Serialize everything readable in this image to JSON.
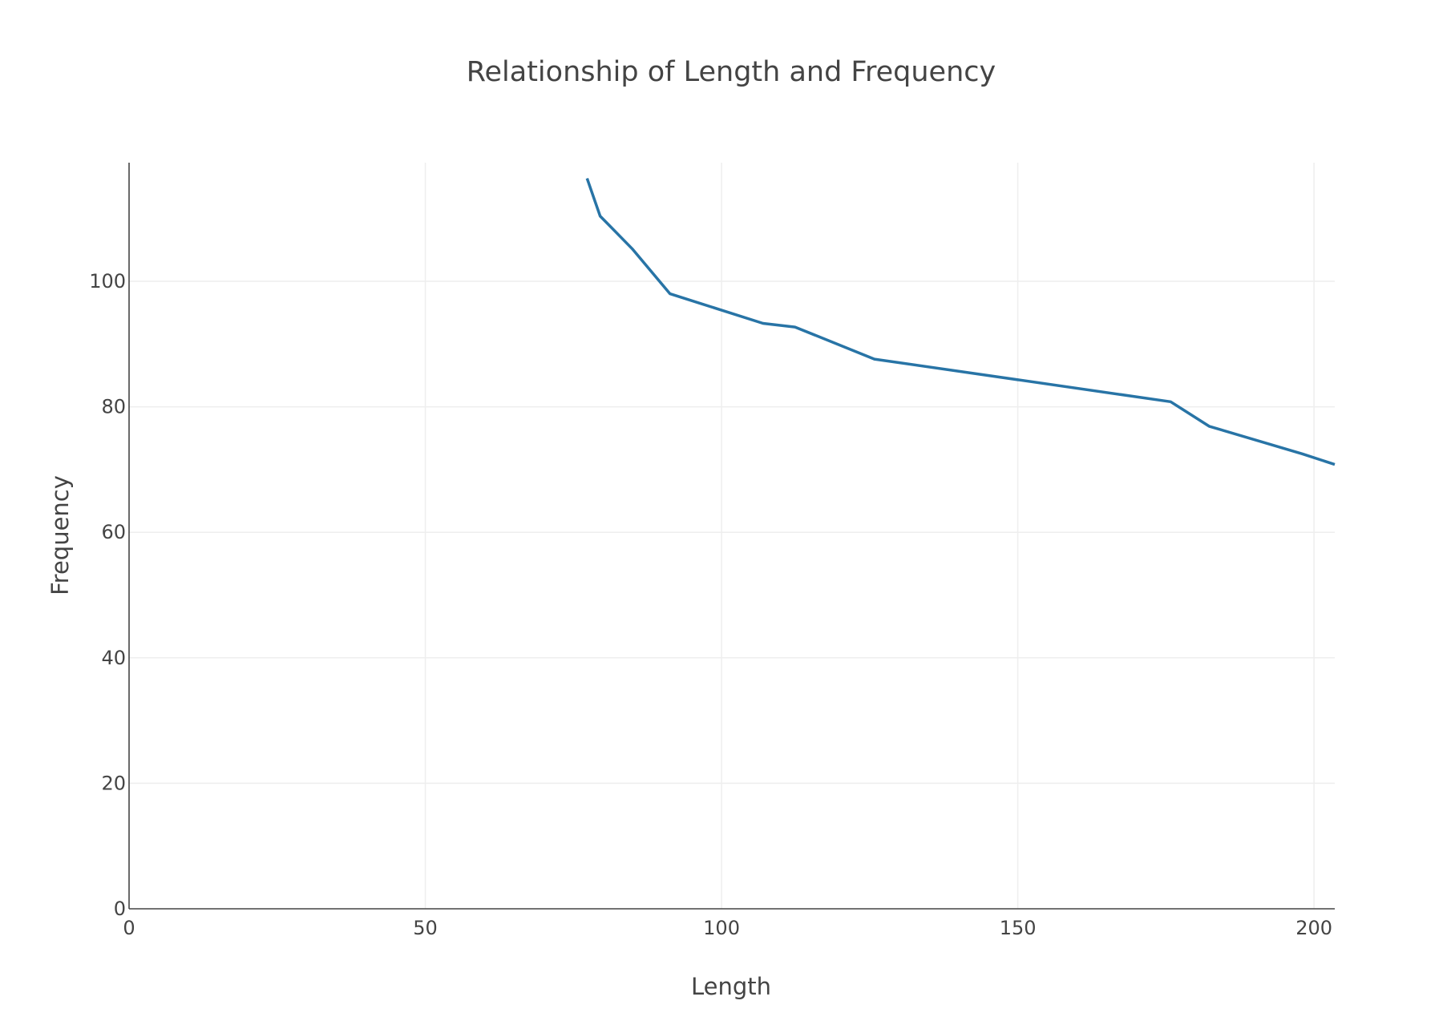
{
  "chart_data": {
    "type": "line",
    "title": "Relationship of Length and Frequency",
    "xlabel": "Length",
    "ylabel": "Frequency",
    "xlim": [
      0,
      203.5
    ],
    "ylim": [
      0,
      118.9
    ],
    "x_ticks": [
      0,
      50,
      100,
      150,
      200
    ],
    "y_ticks": [
      0,
      20,
      40,
      60,
      80,
      100
    ],
    "grid": true,
    "legend": "none",
    "colors": {
      "line": "#2874a6",
      "grid": "#eeeeee",
      "axis": "#444444",
      "text": "#444444"
    },
    "series": [
      {
        "x": [
          77.3,
          79.5,
          84.9,
          91.3,
          107.0,
          112.4,
          125.8,
          175.8,
          182.3,
          198.0,
          203.5
        ],
        "y": [
          116.4,
          110.4,
          105.2,
          98.0,
          93.3,
          92.7,
          87.6,
          80.8,
          76.9,
          72.5,
          70.8
        ]
      }
    ]
  }
}
